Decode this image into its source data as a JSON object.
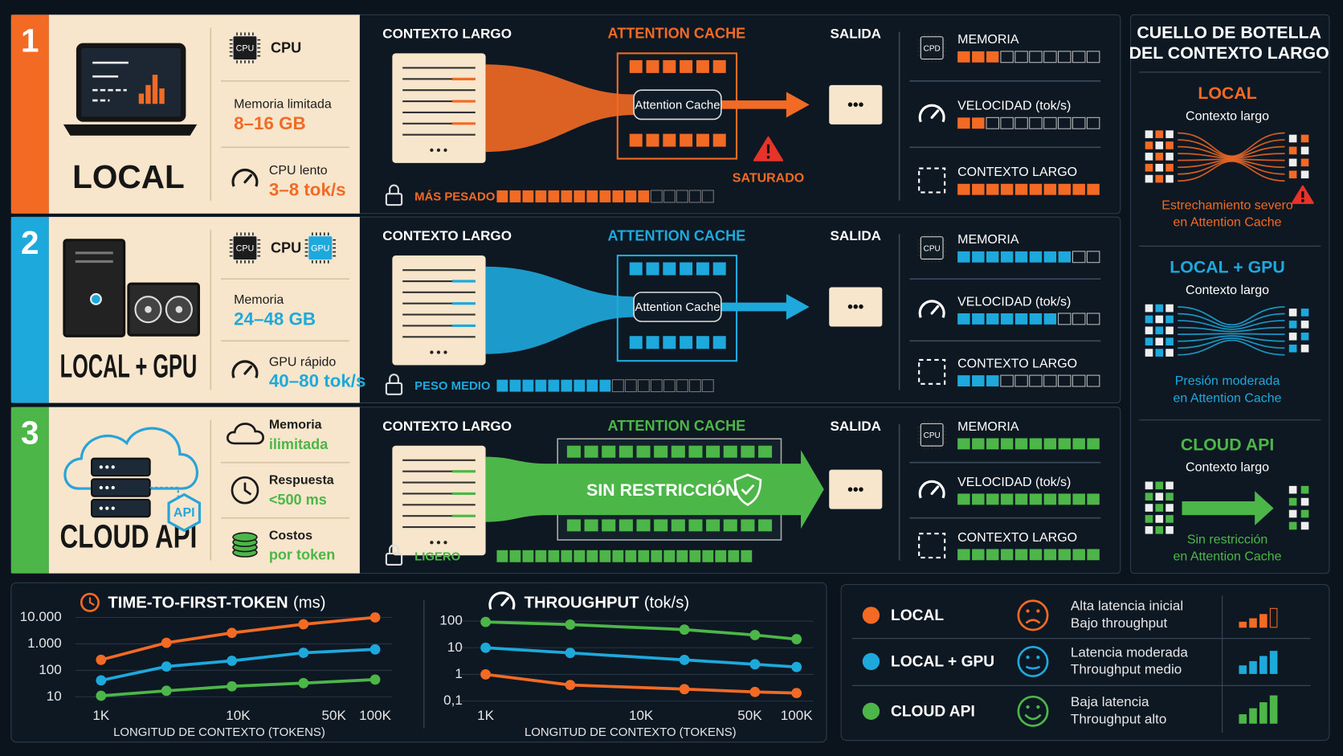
{
  "rows": [
    {
      "number": "1",
      "name": "LOCAL",
      "color": "#f26a24",
      "chips": [
        {
          "chip": "CPU",
          "label": "CPU"
        }
      ],
      "specs": [
        {
          "label": "Memoria limitada",
          "value": "8–16 GB"
        },
        {
          "label": "CPU lento",
          "value": "3–8 tok/s"
        }
      ],
      "flow": {
        "input": "CONTEXTO LARGO",
        "cache": "ATTENTION CACHE",
        "cache_label": "Attention Cache",
        "output": "SALIDA",
        "output_symbol": "•••",
        "warning": "SATURADO"
      },
      "weight": {
        "label": "MÁS PESADO",
        "filled": 12,
        "total": 17
      },
      "metrics": [
        {
          "icon": "CPD",
          "label": "MEMORIA",
          "filled": 3,
          "total": 10
        },
        {
          "label": "VELOCIDAD (tok/s)",
          "filled": 2,
          "total": 10
        },
        {
          "label": "CONTEXTO LARGO",
          "filled": 10,
          "total": 10
        }
      ]
    },
    {
      "number": "2",
      "name": "LOCAL + GPU",
      "color": "#1ea9dd",
      "chips": [
        {
          "chip": "CPU",
          "label": "CPU"
        },
        {
          "chip": "GPU"
        }
      ],
      "specs": [
        {
          "label": "Memoria",
          "value": "24–48 GB"
        },
        {
          "label": "GPU rápido",
          "value": "40–80 tok/s"
        }
      ],
      "flow": {
        "input": "CONTEXTO LARGO",
        "cache": "ATTENTION CACHE",
        "cache_label": "Attention Cache",
        "output": "SALIDA",
        "output_symbol": "•••"
      },
      "weight": {
        "label": "PESO MEDIO",
        "filled": 9,
        "total": 17
      },
      "metrics": [
        {
          "icon": "CPU",
          "label": "MEMORIA",
          "filled": 8,
          "total": 10
        },
        {
          "label": "VELOCIDAD (tok/s)",
          "filled": 7,
          "total": 10
        },
        {
          "label": "CONTEXTO LARGO",
          "filled": 3,
          "total": 10
        }
      ]
    },
    {
      "number": "3",
      "name": "CLOUD API",
      "color": "#4cb748",
      "badge": "API",
      "chips": [],
      "specs": [
        {
          "label": "Memoria",
          "value": "ilimitada"
        },
        {
          "label": "Respuesta",
          "value": "<500 ms"
        },
        {
          "label": "Costos",
          "value": "por token"
        }
      ],
      "flow": {
        "input": "CONTEXTO LARGO",
        "cache": "ATTENTION CACHE",
        "cache_label": "SIN RESTRICCIÓN",
        "output": "SALIDA",
        "output_symbol": "•••"
      },
      "weight": {
        "label": "LIGERO",
        "filled": 20,
        "total": 20
      },
      "metrics": [
        {
          "icon": "CPU",
          "label": "MEMORIA",
          "filled": 10,
          "total": 10
        },
        {
          "label": "VELOCIDAD (tok/s)",
          "filled": 10,
          "total": 10
        },
        {
          "label": "CONTEXTO LARGO",
          "filled": 10,
          "total": 10
        }
      ]
    }
  ],
  "bottleneck": {
    "title": [
      "CUELLO DE BOTELLA",
      "DEL CONTEXTO LARGO"
    ],
    "items": [
      {
        "name": "LOCAL",
        "subtitle": "Contexto largo",
        "caption": [
          "Estrechamiento severo",
          "en Attention Cache"
        ]
      },
      {
        "name": "LOCAL + GPU",
        "subtitle": "Contexto largo",
        "caption": [
          "Presión moderada",
          "en Attention Cache"
        ]
      },
      {
        "name": "CLOUD API",
        "subtitle": "Contexto largo",
        "caption": [
          "Sin restricción",
          "en Attention Cache"
        ]
      }
    ]
  },
  "chart_data": [
    {
      "type": "line",
      "title": "TIME-TO-FIRST-TOKEN",
      "title_unit": "(ms)",
      "x_label": "LONGITUD DE CONTEXTO (TOKENS)",
      "x": [
        1000,
        3000,
        9000,
        30000,
        100000
      ],
      "xscale": "log",
      "xlim": [
        1000,
        100000
      ],
      "xticks": [
        {
          "value": 1000,
          "label": "1K"
        },
        {
          "value": 10000,
          "label": "10K"
        },
        {
          "value": 50000,
          "label": "50K"
        },
        {
          "value": 100000,
          "label": "100K"
        }
      ],
      "yscale": "log",
      "ylim": [
        7,
        15000
      ],
      "yticks": [
        10,
        100,
        {
          "value": 1000,
          "label": "1.000"
        },
        {
          "value": 10000,
          "label": "10.000"
        }
      ],
      "grid": true,
      "series": [
        {
          "color": "#f26a24",
          "values": [
            250,
            1100,
            2600,
            5500,
            10000
          ]
        },
        {
          "color": "#1ea9dd",
          "values": [
            42,
            140,
            230,
            460,
            620
          ]
        },
        {
          "color": "#4cb748",
          "values": [
            11,
            17,
            25,
            33,
            45
          ]
        }
      ]
    },
    {
      "type": "line",
      "title": "THROUGHPUT",
      "title_unit": "(tok/s)",
      "x_label": "LONGITUD DE CONTEXTO (TOKENS)",
      "x": [
        1000,
        3500,
        19000,
        54000,
        100000
      ],
      "xscale": "log",
      "xlim": [
        1000,
        100000
      ],
      "xticks": [
        {
          "value": 1000,
          "label": "1K"
        },
        {
          "value": 10000,
          "label": "10K"
        },
        {
          "value": 50000,
          "label": "50K"
        },
        {
          "value": 100000,
          "label": "100K"
        }
      ],
      "yscale": "log",
      "ylim": [
        0.075,
        165
      ],
      "yticks": [
        {
          "value": 0.1,
          "label": "0,1"
        },
        1,
        10,
        100
      ],
      "grid": true,
      "series": [
        {
          "color": "#f26a24",
          "values": [
            1,
            0.4,
            0.28,
            0.22,
            0.2
          ]
        },
        {
          "color": "#1ea9dd",
          "values": [
            10,
            6.4,
            3.5,
            2.4,
            1.9
          ]
        },
        {
          "color": "#4cb748",
          "values": [
            93,
            74,
            48,
            30,
            21
          ]
        }
      ]
    }
  ],
  "legend": [
    {
      "name": "LOCAL",
      "lines": [
        "Alta latencia inicial",
        "Bajo throughput"
      ]
    },
    {
      "name": "LOCAL + GPU",
      "lines": [
        "Latencia moderada",
        "Throughput medio"
      ]
    },
    {
      "name": "CLOUD API",
      "lines": [
        "Baja latencia",
        "Throughput alto"
      ]
    }
  ]
}
